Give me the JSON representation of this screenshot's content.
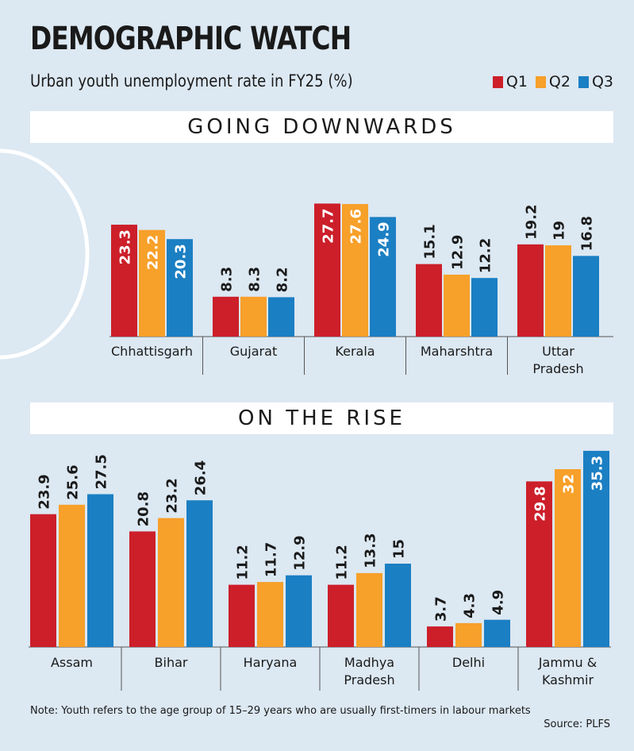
{
  "header": {
    "title": "DEMOGRAPHIC WATCH",
    "subtitle": "Urban youth unemployment rate in FY25 (%)"
  },
  "legend": [
    {
      "label": "Q1",
      "color": "#cc1f2a"
    },
    {
      "label": "Q2",
      "color": "#f7a02a"
    },
    {
      "label": "Q3",
      "color": "#1b7fc3"
    }
  ],
  "chart_data": [
    {
      "type": "bar",
      "title": "GOING DOWNWARDS",
      "categories": [
        "Chhattisgarh",
        "Gujarat",
        "Kerala",
        "Maharshtra",
        "Uttar Pradesh"
      ],
      "series": [
        {
          "name": "Q1",
          "values": [
            23.3,
            8.3,
            27.7,
            15.1,
            19.2
          ]
        },
        {
          "name": "Q2",
          "values": [
            22.2,
            8.3,
            27.6,
            12.9,
            19
          ]
        },
        {
          "name": "Q3",
          "values": [
            20.3,
            8.2,
            24.9,
            12.2,
            16.8
          ]
        }
      ],
      "value_labels": [
        [
          "23.3",
          "8.3",
          "27.7",
          "15.1",
          "19.2"
        ],
        [
          "22.2",
          "8.3",
          "27.6",
          "12.9",
          "19"
        ],
        [
          "20.3",
          "8.2",
          "24.9",
          "12.2",
          "16.8"
        ]
      ],
      "grid": false,
      "legend_position": "top-right"
    },
    {
      "type": "bar",
      "title": "ON THE RISE",
      "categories": [
        "Assam",
        "Bihar",
        "Haryana",
        "Madhya Pradesh",
        "Delhi",
        "Jammu & Kashmir"
      ],
      "series": [
        {
          "name": "Q1",
          "values": [
            23.9,
            20.8,
            11.2,
            11.2,
            3.7,
            29.8
          ]
        },
        {
          "name": "Q2",
          "values": [
            25.6,
            23.2,
            11.7,
            13.3,
            4.3,
            32
          ]
        },
        {
          "name": "Q3",
          "values": [
            27.5,
            26.4,
            12.9,
            15,
            4.9,
            35.3
          ]
        }
      ],
      "value_labels": [
        [
          "23.9",
          "20.8",
          "11.2",
          "11.2",
          "3.7",
          "29.8"
        ],
        [
          "25.6",
          "23.2",
          "11.7",
          "13.3",
          "4.3",
          "32"
        ],
        [
          "27.5",
          "26.4",
          "12.9",
          "15",
          "4.9",
          "35.3"
        ]
      ],
      "grid": false,
      "legend_position": "top-right"
    }
  ],
  "footer": {
    "note": "Note: Youth refers to the age group of 15–29 years who are usually first-timers in  labour markets",
    "source": "Source: PLFS"
  }
}
